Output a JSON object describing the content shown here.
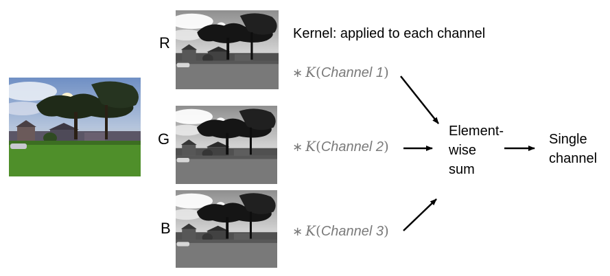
{
  "channels": [
    {
      "label": "R",
      "conv": {
        "star": "∗",
        "k": "K",
        "open": "(",
        "name": "Channel 1",
        "close": ")"
      }
    },
    {
      "label": "G",
      "conv": {
        "star": "∗",
        "k": "K",
        "open": "(",
        "name": "Channel 2",
        "close": ")"
      }
    },
    {
      "label": "B",
      "conv": {
        "star": "∗",
        "k": "K",
        "open": "(",
        "name": "Channel 3",
        "close": ")"
      }
    }
  ],
  "kernel_caption": "Kernel: applied to each channel",
  "sum_label": {
    "line1": "Element-",
    "line2": "wise",
    "line3": "sum"
  },
  "output_label": {
    "line1": "Single",
    "line2": "channel"
  },
  "colors": {
    "text": "#000000",
    "formula": "#7a7a7a",
    "sky": "#7a9cc8",
    "grass": "#4f8f2a"
  }
}
